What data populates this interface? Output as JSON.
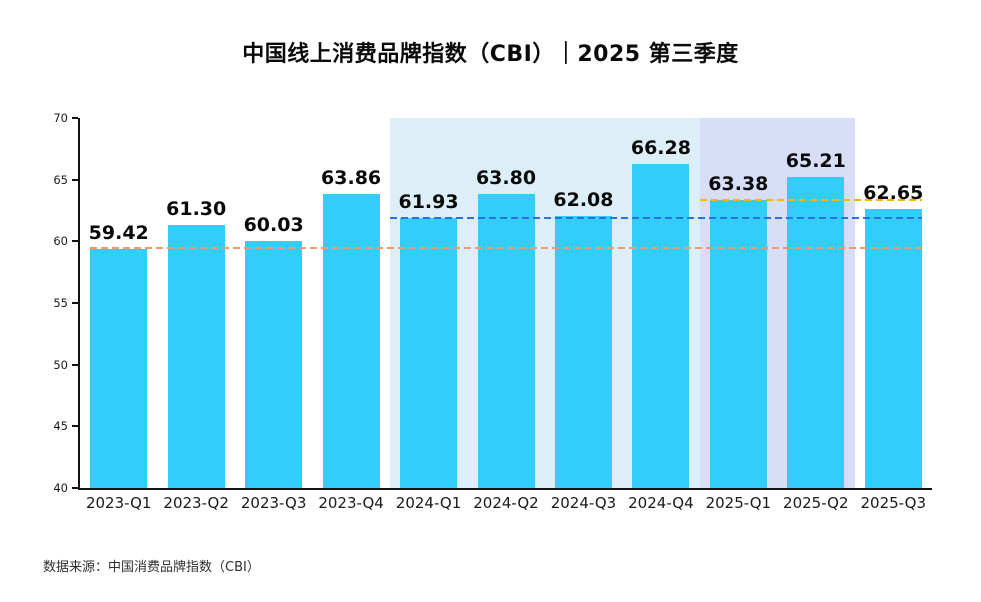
{
  "page": {
    "title": "中国线上消费品牌指数（CBI）｜2025 第三季度",
    "source_note": "数据来源：中国消费品牌指数（CBI）"
  },
  "colors": {
    "bar": "#32CDF9",
    "band_2024": "#DCEFF8",
    "band_2025": "#D8DEF7",
    "ref_2023_q1": "#F09A6E",
    "ref_2024_q1": "#2E6FE6",
    "ref_2025_q1": "#F6B600",
    "axis": "#111111",
    "value_label": "#0A0A0A",
    "tick_label": "#1A1A1A"
  },
  "chart_data": {
    "type": "bar",
    "title": "中国线上消费品牌指数（CBI）｜2025 第三季度",
    "categories": [
      "2023-Q1",
      "2023-Q2",
      "2023-Q3",
      "2023-Q4",
      "2024-Q1",
      "2024-Q2",
      "2024-Q3",
      "2024-Q4",
      "2025-Q1",
      "2025-Q2",
      "2025-Q3"
    ],
    "values": [
      59.42,
      61.3,
      60.03,
      63.86,
      61.93,
      63.8,
      62.08,
      66.28,
      63.38,
      65.21,
      62.65
    ],
    "xlabel": "",
    "ylabel": "",
    "ylim": [
      40,
      70
    ],
    "yticks": [
      40,
      45,
      50,
      55,
      60,
      65,
      70
    ],
    "grid": false,
    "legend_position": "none",
    "highlight_bands": [
      {
        "name": "2024",
        "from_index": 4,
        "to_index": 7,
        "color": "#DCEFF8"
      },
      {
        "name": "2025",
        "from_index": 8,
        "to_index": 9,
        "color": "#D8DEF7"
      }
    ],
    "reference_lines": [
      {
        "name": "2023-Q1-level",
        "value": 59.42,
        "color": "#F09A6E",
        "start_index": 0,
        "align": "bar"
      },
      {
        "name": "2024-Q1-level",
        "value": 61.93,
        "color": "#2E6FE6",
        "start_index": 4,
        "align": "slot"
      },
      {
        "name": "2025-Q1-level",
        "value": 63.38,
        "color": "#F6B600",
        "start_index": 8,
        "align": "slot"
      }
    ]
  }
}
